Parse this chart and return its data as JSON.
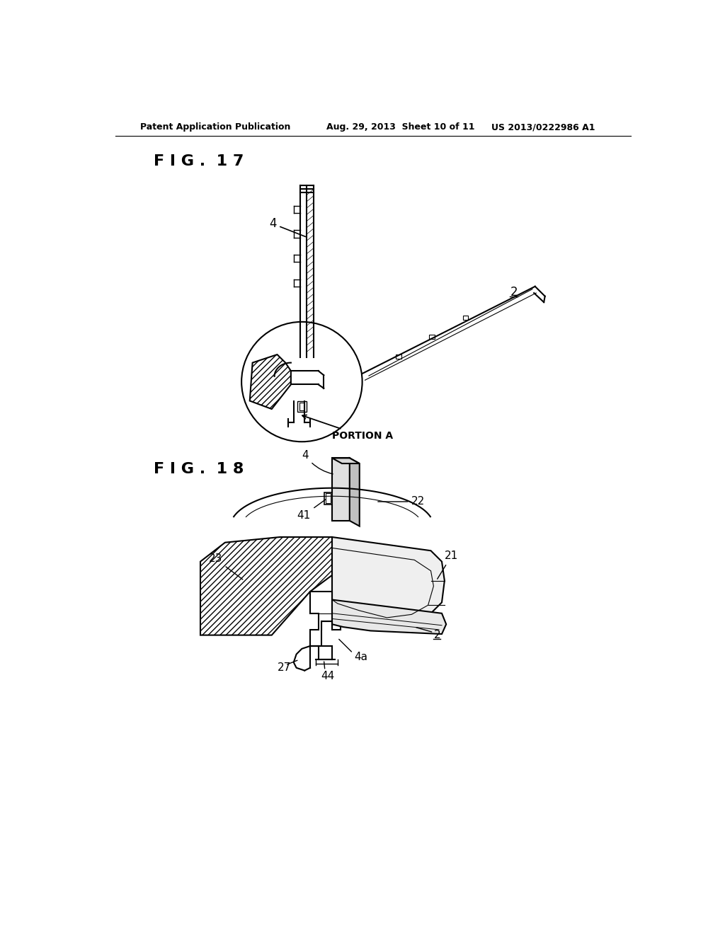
{
  "bg_color": "#ffffff",
  "text_color": "#000000",
  "header_left": "Patent Application Publication",
  "header_center": "Aug. 29, 2013  Sheet 10 of 11",
  "header_right": "US 2013/0222986 A1",
  "fig17_label": "F I G .  1 7",
  "fig18_label": "F I G .  1 8",
  "line_color": "#000000",
  "line_width": 1.5
}
